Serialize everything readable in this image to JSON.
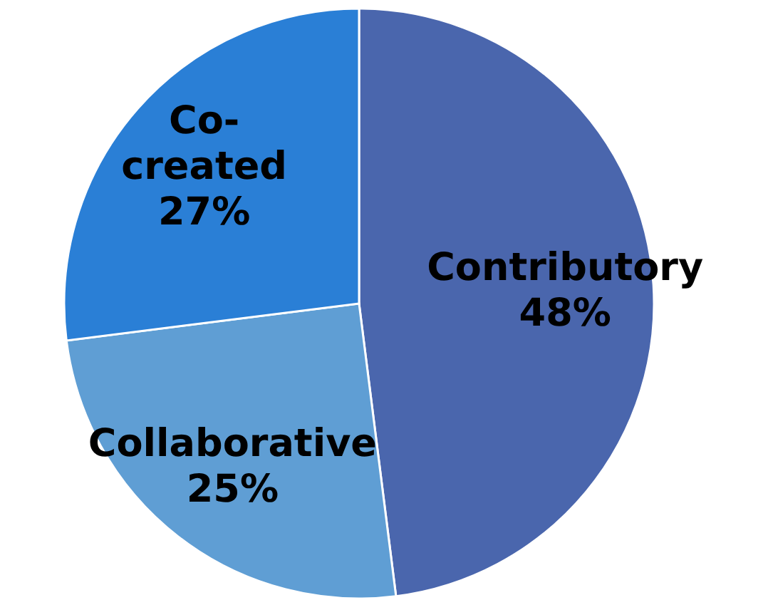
{
  "chart_data": {
    "type": "pie",
    "categories": [
      "Contributory",
      "Collaborative",
      "Co-created"
    ],
    "values": [
      48,
      25,
      27
    ],
    "colors": [
      "#4a66ad",
      "#5f9ed4",
      "#2a7fd6"
    ],
    "data_labels": true,
    "value_labels": [
      "48%",
      "25%",
      "27%"
    ]
  }
}
